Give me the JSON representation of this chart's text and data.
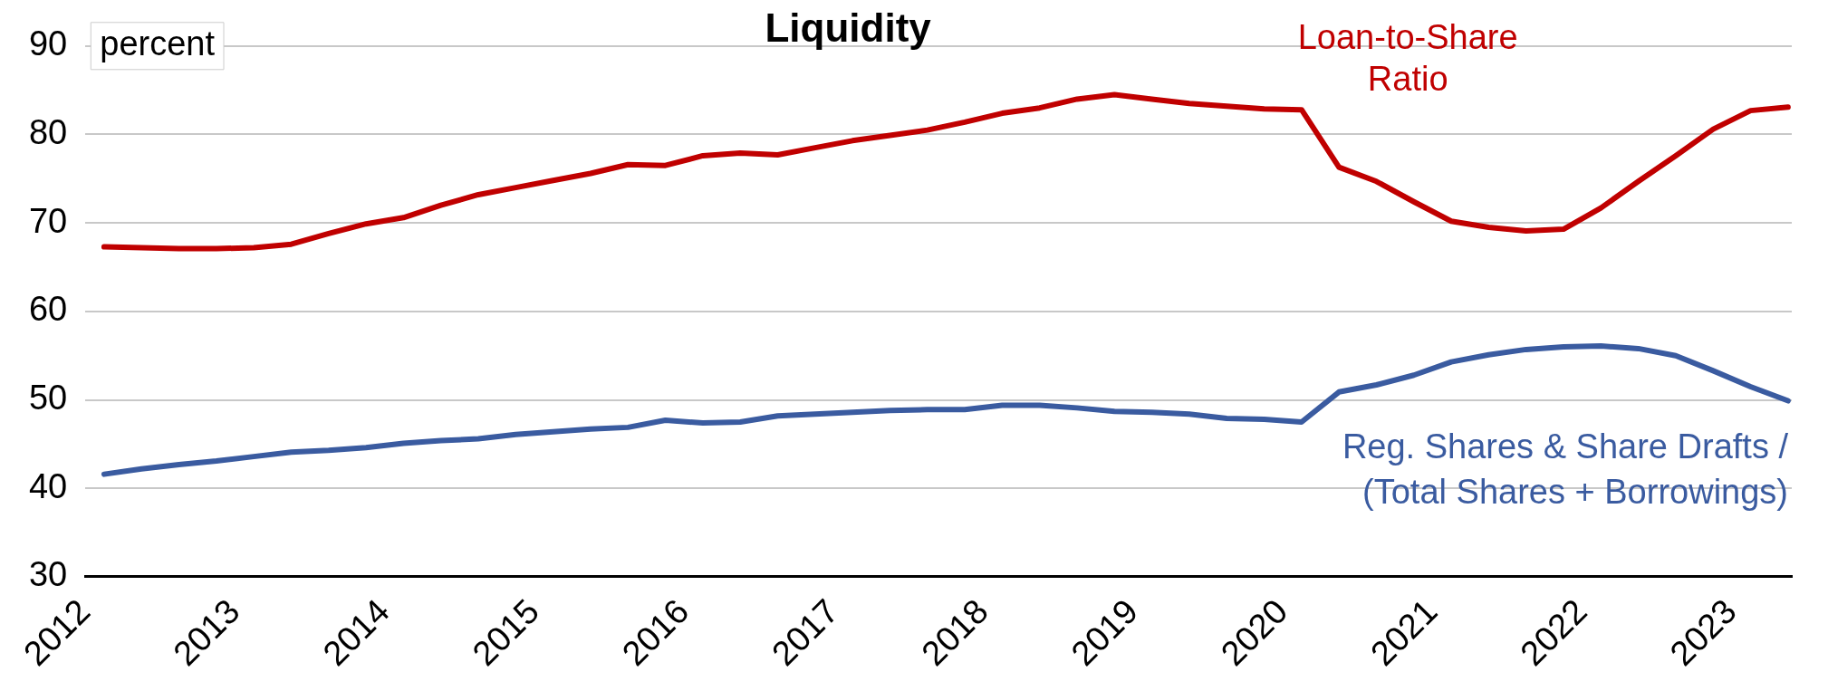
{
  "chart_data": {
    "type": "line",
    "title": "Liquidity",
    "ylabel": "percent",
    "x": [
      2012.125,
      2012.375,
      2012.625,
      2012.875,
      2013.125,
      2013.375,
      2013.625,
      2013.875,
      2014.125,
      2014.375,
      2014.625,
      2014.875,
      2015.125,
      2015.375,
      2015.625,
      2015.875,
      2016.125,
      2016.375,
      2016.625,
      2016.875,
      2017.125,
      2017.375,
      2017.625,
      2017.875,
      2018.125,
      2018.375,
      2018.625,
      2018.875,
      2019.125,
      2019.375,
      2019.625,
      2019.875,
      2020.125,
      2020.375,
      2020.625,
      2020.875,
      2021.125,
      2021.375,
      2021.625,
      2021.875,
      2022.125,
      2022.375,
      2022.625,
      2022.875,
      2023.125,
      2023.375
    ],
    "series": [
      {
        "name": "Loan-to-Share Ratio",
        "color": "#c00000",
        "values": [
          67.3,
          67.2,
          67.1,
          67.1,
          67.2,
          67.6,
          68.8,
          69.9,
          70.6,
          72.0,
          73.2,
          74.0,
          74.8,
          75.6,
          76.6,
          76.5,
          77.6,
          77.9,
          77.7,
          78.5,
          79.3,
          79.9,
          80.5,
          81.4,
          82.4,
          83.0,
          84.0,
          84.5,
          84.0,
          83.5,
          83.2,
          82.9,
          82.8,
          76.3,
          74.7,
          72.4,
          70.2,
          69.5,
          69.1,
          69.3,
          71.7,
          74.7,
          77.6,
          80.6,
          82.7,
          83.1
        ]
      },
      {
        "name": "Reg. Shares & Share Drafts / (Total Shares + Borrowings)",
        "color": "#3a5ba0",
        "values": [
          41.6,
          42.2,
          42.7,
          43.1,
          43.6,
          44.1,
          44.3,
          44.6,
          45.1,
          45.4,
          45.6,
          46.1,
          46.4,
          46.7,
          46.9,
          47.7,
          47.4,
          47.5,
          48.2,
          48.4,
          48.6,
          48.8,
          48.9,
          48.9,
          49.4,
          49.4,
          49.1,
          48.7,
          48.6,
          48.4,
          47.9,
          47.8,
          47.5,
          50.9,
          51.7,
          52.8,
          54.3,
          55.1,
          55.7,
          56.0,
          56.1,
          55.8,
          55.0,
          53.3,
          51.5,
          49.9
        ]
      }
    ],
    "xlim": [
      2012,
      2023.4
    ],
    "xticks": [
      2012,
      2013,
      2014,
      2015,
      2016,
      2017,
      2018,
      2019,
      2020,
      2021,
      2022,
      2023
    ],
    "ylim": [
      30,
      90
    ],
    "yticks": [
      30,
      40,
      50,
      60,
      70,
      80,
      90
    ],
    "grid": "y",
    "legend": false,
    "marker": "none",
    "line_style": "solid"
  }
}
